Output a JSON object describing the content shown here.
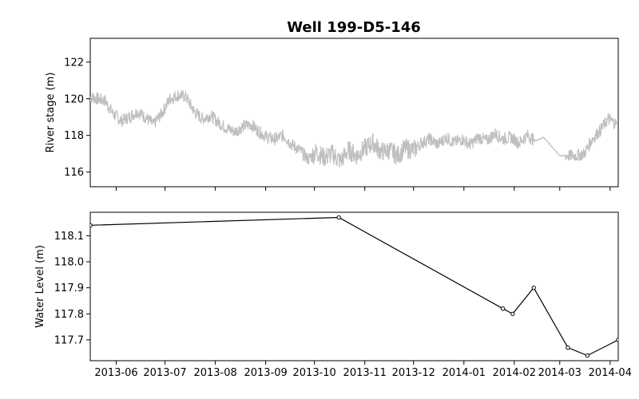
{
  "chart_data": [
    {
      "type": "line",
      "title": "Well 199-D5-146",
      "xlabel": "",
      "ylabel": "River stage (m)",
      "xlim": [
        "2013-05-16",
        "2014-04-06"
      ],
      "ylim": [
        115.2,
        123.3
      ],
      "yticks": [
        116,
        118,
        120,
        122
      ],
      "xticks": [],
      "grid": false,
      "series": [
        {
          "color": "#bfbfbf",
          "x": [
            "2013-05-16",
            "2013-05-20",
            "2013-05-25",
            "2013-05-30",
            "2013-06-04",
            "2013-06-09",
            "2013-06-14",
            "2013-06-19",
            "2013-06-24",
            "2013-06-29",
            "2013-07-04",
            "2013-07-09",
            "2013-07-14",
            "2013-07-19",
            "2013-07-24",
            "2013-07-29",
            "2013-08-03",
            "2013-08-08",
            "2013-08-13",
            "2013-08-18",
            "2013-08-23",
            "2013-08-28",
            "2013-09-02",
            "2013-09-07",
            "2013-09-12",
            "2013-09-17",
            "2013-09-22",
            "2013-09-27",
            "2013-10-02",
            "2013-10-07",
            "2013-10-12",
            "2013-10-17",
            "2013-10-22",
            "2013-10-27",
            "2013-11-01",
            "2013-11-06",
            "2013-11-11",
            "2013-11-16",
            "2013-11-21",
            "2013-11-26",
            "2013-12-01",
            "2013-12-06",
            "2013-12-11",
            "2013-12-16",
            "2013-12-21",
            "2013-12-26",
            "2013-12-31",
            "2014-01-05",
            "2014-01-10",
            "2014-01-15",
            "2014-01-20",
            "2014-01-25",
            "2014-01-30",
            "2014-02-04",
            "2014-02-09",
            "2014-02-14",
            "2014-02-19",
            "2014-02-24",
            "2014-03-01",
            "2014-03-06",
            "2014-03-11",
            "2014-03-16",
            "2014-03-21",
            "2014-03-26",
            "2014-03-31",
            "2014-04-05"
          ],
          "values": [
            120.1,
            120.0,
            119.9,
            119.2,
            118.8,
            119.0,
            119.3,
            119.0,
            118.6,
            119.2,
            120.0,
            120.2,
            120.1,
            119.3,
            118.9,
            119.1,
            118.7,
            118.4,
            118.2,
            118.5,
            118.6,
            118.2,
            117.9,
            117.8,
            118.0,
            117.5,
            117.2,
            116.7,
            117.1,
            116.8,
            117.0,
            116.6,
            117.2,
            116.9,
            117.3,
            117.6,
            117.1,
            117.2,
            116.9,
            117.3,
            117.2,
            117.6,
            117.8,
            117.5,
            117.9,
            117.6,
            117.8,
            117.5,
            117.9,
            117.7,
            118.1,
            117.8,
            117.9,
            117.6,
            118.0,
            117.7,
            117.9,
            117.4,
            116.9,
            116.9,
            116.9,
            117.0,
            117.8,
            118.3,
            118.9,
            118.6
          ]
        }
      ]
    },
    {
      "type": "line",
      "title": "",
      "xlabel": "",
      "ylabel": "Water Level (m)",
      "xlim": [
        "2013-05-16",
        "2014-04-06"
      ],
      "ylim": [
        117.62,
        118.19
      ],
      "yticks": [
        117.7,
        117.8,
        117.9,
        118.0,
        118.1
      ],
      "xticks": [
        "2013-06",
        "2013-07",
        "2013-08",
        "2013-09",
        "2013-10",
        "2013-11",
        "2013-12",
        "2014-01",
        "2014-02",
        "2014-03",
        "2014-04"
      ],
      "grid": false,
      "series": [
        {
          "color": "#000000",
          "x": [
            "2013-05-16",
            "2013-10-16",
            "2014-01-25",
            "2014-01-31",
            "2014-02-13",
            "2014-03-06",
            "2014-03-18",
            "2014-04-06"
          ],
          "values": [
            118.14,
            118.17,
            117.82,
            117.8,
            117.9,
            117.67,
            117.64,
            117.7
          ]
        }
      ]
    }
  ]
}
